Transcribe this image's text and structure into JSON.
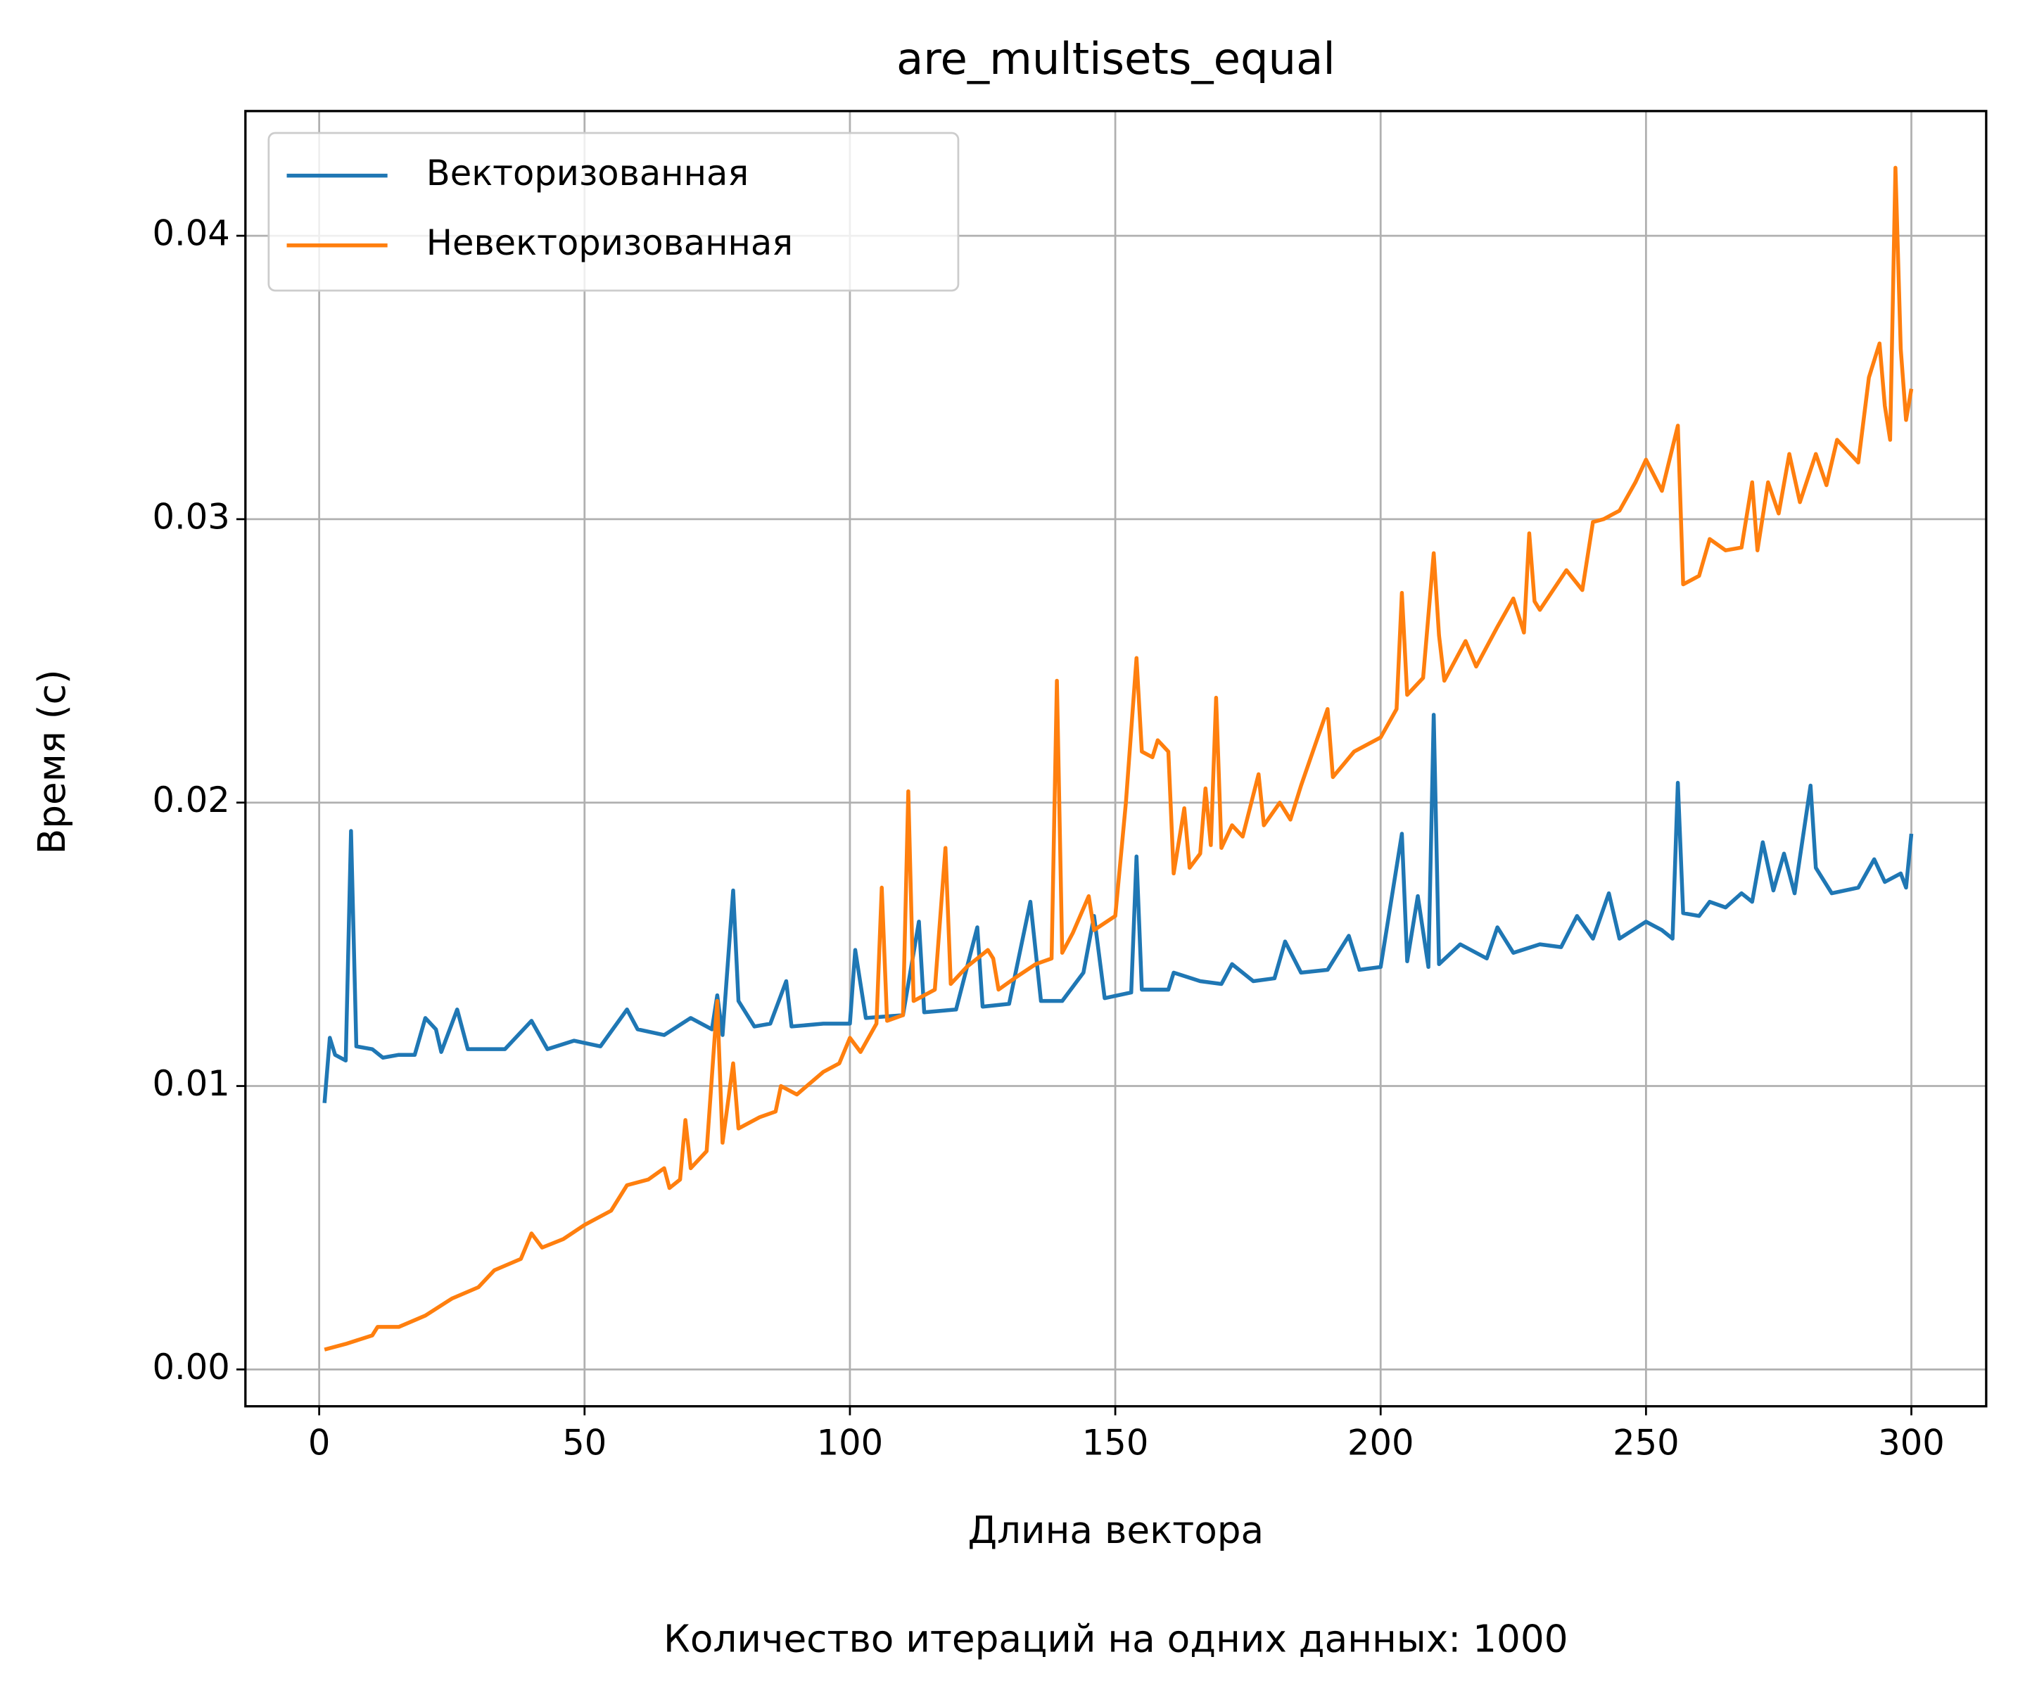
{
  "chart_data": {
    "type": "line",
    "title": "are_multisets_equal",
    "x_label": "Длина вектора",
    "y_label": "Время (с)",
    "footer": "Количество итераций на одних данных: 1000",
    "xlim": [
      -13.9,
      314.1
    ],
    "ylim": [
      -0.0013,
      0.0444
    ],
    "xticks": [
      0,
      50,
      100,
      150,
      200,
      250,
      300
    ],
    "yticks": [
      {
        "value": 0,
        "label": "0.00"
      },
      0.01,
      0.02,
      0.03,
      0.04
    ],
    "grid": true,
    "legend": "upper left",
    "series": [
      {
        "name": "Векторизованная",
        "color": "#1f77b4",
        "x": [
          1,
          2,
          3,
          5,
          6,
          7,
          10,
          12,
          15,
          18,
          20,
          22,
          23,
          26,
          28,
          35,
          40,
          43,
          48,
          53,
          58,
          60,
          65,
          70,
          74,
          75,
          76,
          78,
          79,
          82,
          85,
          88,
          89,
          95,
          100,
          101,
          103,
          110,
          113,
          114,
          120,
          124,
          125,
          130,
          134,
          136,
          140,
          144,
          146,
          148,
          153,
          154,
          155,
          160,
          161,
          166,
          170,
          172,
          176,
          180,
          182,
          185,
          190,
          194,
          196,
          200,
          204,
          205,
          207,
          209,
          210,
          211,
          215,
          220,
          222,
          225,
          230,
          234,
          237,
          240,
          243,
          245,
          250,
          253,
          255,
          256,
          257,
          260,
          262,
          265,
          268,
          270,
          272,
          274,
          276,
          278,
          281,
          282,
          285,
          290,
          293,
          295,
          298,
          299,
          300
        ],
        "values": [
          0.0094,
          0.0117,
          0.0111,
          0.0109,
          0.019,
          0.0114,
          0.0113,
          0.011,
          0.0111,
          0.0111,
          0.0124,
          0.012,
          0.0112,
          0.0127,
          0.0113,
          0.0113,
          0.0123,
          0.0113,
          0.0116,
          0.0114,
          0.0127,
          0.012,
          0.0118,
          0.0124,
          0.012,
          0.0132,
          0.0118,
          0.0169,
          0.013,
          0.0121,
          0.0122,
          0.0137,
          0.0121,
          0.0122,
          0.0122,
          0.0148,
          0.0124,
          0.0125,
          0.0158,
          0.0126,
          0.0127,
          0.0156,
          0.0128,
          0.0129,
          0.0165,
          0.013,
          0.013,
          0.014,
          0.016,
          0.0131,
          0.0133,
          0.0181,
          0.0134,
          0.0134,
          0.014,
          0.0137,
          0.0136,
          0.0143,
          0.0137,
          0.0138,
          0.0151,
          0.014,
          0.0141,
          0.0153,
          0.0141,
          0.0142,
          0.0189,
          0.0144,
          0.0167,
          0.0142,
          0.0231,
          0.0143,
          0.015,
          0.0145,
          0.0156,
          0.0147,
          0.015,
          0.0149,
          0.016,
          0.0152,
          0.0168,
          0.0152,
          0.0158,
          0.0155,
          0.0152,
          0.0207,
          0.0161,
          0.016,
          0.0165,
          0.0163,
          0.0168,
          0.0165,
          0.0186,
          0.0169,
          0.0182,
          0.0168,
          0.0206,
          0.0177,
          0.0168,
          0.017,
          0.018,
          0.0172,
          0.0175,
          0.017,
          0.0189
        ]
      },
      {
        "name": "Невекторизованная",
        "color": "#ff7f0e",
        "x": [
          1,
          5,
          10,
          11,
          15,
          20,
          25,
          30,
          33,
          38,
          40,
          42,
          46,
          50,
          55,
          58,
          62,
          65,
          66,
          68,
          69,
          70,
          73,
          75,
          76,
          78,
          79,
          83,
          86,
          87,
          90,
          95,
          98,
          100,
          102,
          105,
          106,
          107,
          110,
          111,
          112,
          116,
          118,
          119,
          122,
          126,
          127,
          128,
          131,
          135,
          138,
          139,
          140,
          142,
          145,
          146,
          150,
          152,
          154,
          155,
          157,
          158,
          160,
          161,
          163,
          164,
          166,
          167,
          168,
          169,
          170,
          172,
          174,
          177,
          178,
          181,
          183,
          185,
          190,
          191,
          195,
          200,
          203,
          204,
          205,
          208,
          210,
          211,
          212,
          216,
          218,
          222,
          225,
          227,
          228,
          229,
          230,
          235,
          238,
          240,
          242,
          245,
          248,
          250,
          253,
          256,
          257,
          260,
          262,
          265,
          268,
          270,
          271,
          273,
          275,
          277,
          279,
          282,
          284,
          286,
          290,
          292,
          294,
          295,
          296,
          297,
          298,
          299,
          300
        ],
        "values": [
          0.0007,
          0.0009,
          0.0012,
          0.0015,
          0.0015,
          0.0019,
          0.0025,
          0.0029,
          0.0035,
          0.0039,
          0.0048,
          0.0043,
          0.0046,
          0.0051,
          0.0056,
          0.0065,
          0.0067,
          0.0071,
          0.0064,
          0.0067,
          0.0088,
          0.0071,
          0.0077,
          0.013,
          0.008,
          0.0108,
          0.0085,
          0.0089,
          0.0091,
          0.01,
          0.0097,
          0.0105,
          0.0108,
          0.0117,
          0.0112,
          0.0122,
          0.017,
          0.0123,
          0.0125,
          0.0204,
          0.013,
          0.0134,
          0.0184,
          0.0136,
          0.0142,
          0.0148,
          0.0145,
          0.0134,
          0.0138,
          0.0143,
          0.0145,
          0.0243,
          0.0147,
          0.0154,
          0.0167,
          0.0155,
          0.016,
          0.02,
          0.0251,
          0.0218,
          0.0216,
          0.0222,
          0.0218,
          0.0175,
          0.0198,
          0.0177,
          0.0182,
          0.0205,
          0.0185,
          0.0237,
          0.0184,
          0.0192,
          0.0188,
          0.021,
          0.0192,
          0.02,
          0.0194,
          0.0206,
          0.0233,
          0.0209,
          0.0218,
          0.0223,
          0.0233,
          0.0274,
          0.0238,
          0.0244,
          0.0288,
          0.0259,
          0.0243,
          0.0257,
          0.0248,
          0.0262,
          0.0272,
          0.026,
          0.0295,
          0.0271,
          0.0268,
          0.0282,
          0.0275,
          0.0299,
          0.03,
          0.0303,
          0.0313,
          0.0321,
          0.031,
          0.0333,
          0.0277,
          0.028,
          0.0293,
          0.0289,
          0.029,
          0.0313,
          0.0289,
          0.0313,
          0.0302,
          0.0323,
          0.0306,
          0.0323,
          0.0312,
          0.0328,
          0.032,
          0.035,
          0.0362,
          0.034,
          0.0328,
          0.0424,
          0.036,
          0.0335,
          0.0346
        ]
      }
    ]
  }
}
